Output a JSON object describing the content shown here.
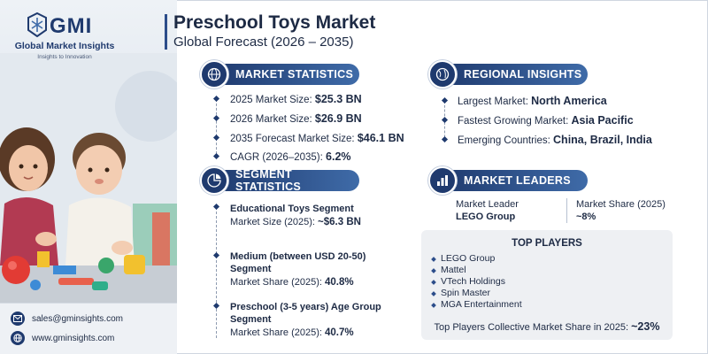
{
  "brand": {
    "logo_text": "GMI",
    "name": "Global Market Insights",
    "tagline": "Insights to Innovation"
  },
  "header": {
    "title": "Preschool Toys Market",
    "subtitle": "Global Forecast (2026 – 2035)"
  },
  "market_statistics": {
    "heading": "MARKET STATISTICS",
    "icon": "globe-chart-icon",
    "rows": [
      {
        "label": "2025 Market Size: ",
        "value": "$25.3 BN"
      },
      {
        "label": "2026 Market Size: ",
        "value": "$26.9 BN"
      },
      {
        "label": "2035 Forecast Market Size: ",
        "value": "$46.1 BN"
      },
      {
        "label": "CAGR (2026–2035): ",
        "value": "6.2%"
      }
    ]
  },
  "regional_insights": {
    "heading": "REGIONAL INSIGHTS",
    "icon": "globe-icon",
    "rows": [
      {
        "label": "Largest Market: ",
        "value": "North America"
      },
      {
        "label": "Fastest Growing Market: ",
        "value": "Asia Pacific"
      },
      {
        "label": "Emerging Countries: ",
        "value": "China, Brazil, India"
      }
    ]
  },
  "segment_statistics": {
    "heading": "SEGMENT STATISTICS",
    "icon": "segment-icon",
    "items": [
      {
        "title": "Educational Toys Segment",
        "label": "Market Size (2025): ",
        "value": "~$6.3 BN"
      },
      {
        "title_line1": "Medium (between USD 20-50)",
        "title_line2": "Segment",
        "label": "Market Share (2025): ",
        "value": "40.8%"
      },
      {
        "title_line1": "Preschool (3-5 years) Age Group",
        "title_line2": "Segment",
        "label": "Market Share (2025): ",
        "value": "40.7%"
      }
    ]
  },
  "market_leaders": {
    "heading": "MARKET LEADERS",
    "icon": "leaders-chart-icon",
    "leader_label": "Market Leader",
    "leader_value": "LEGO Group",
    "share_label": "Market Share (2025)",
    "share_value": "~8%"
  },
  "top_players": {
    "heading": "TOP PLAYERS",
    "items": [
      "LEGO Group",
      "Mattel",
      "VTech Holdings",
      "Spin Master",
      "MGA Entertainment"
    ],
    "footer_label": "Top Players Collective Market Share in 2025: ",
    "footer_value": "~23%"
  },
  "contact": {
    "email": "sales@gminsights.com",
    "website": "www.gminsights.com"
  },
  "colors": {
    "primary": "#1f3a6e",
    "accent": "#3f6ba8",
    "text": "#1d2a44"
  }
}
